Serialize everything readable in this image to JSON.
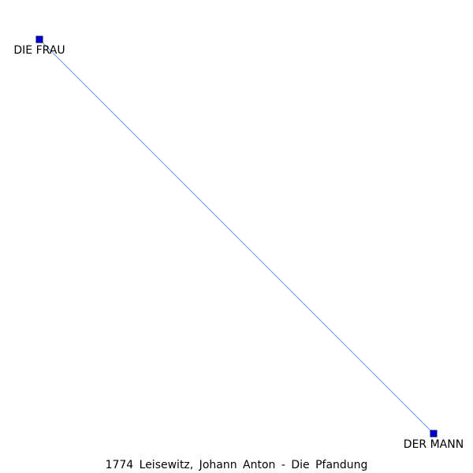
{
  "graph": {
    "nodes": [
      {
        "id": "frau",
        "label": "DIE FRAU"
      },
      {
        "id": "mann",
        "label": "DER MANN"
      }
    ],
    "edges": [
      {
        "source": "frau",
        "target": "mann"
      }
    ],
    "colors": {
      "node_fill": "#0000cc",
      "node_stroke": "#000080",
      "edge": "#6495ed"
    }
  },
  "caption": "1774 Leisewitz, Johann Anton - Die Pfandung"
}
